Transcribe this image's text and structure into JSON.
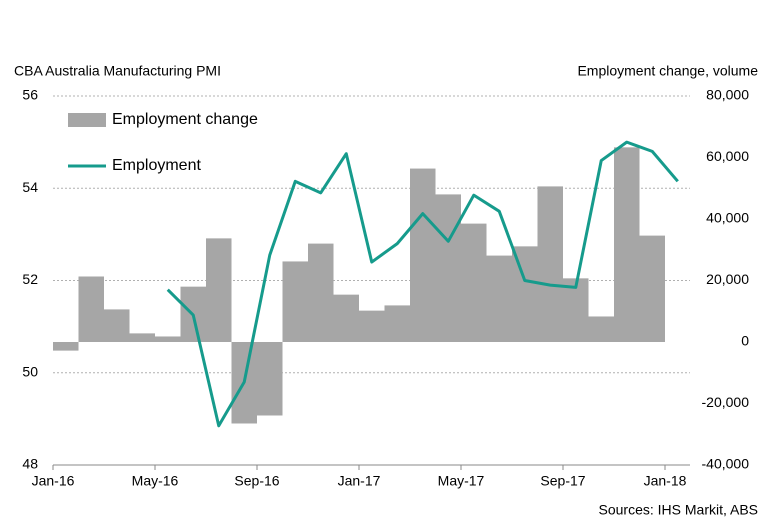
{
  "chart_data": {
    "type": "bar_line",
    "title": "CBA Australia Manufacturing  PMI",
    "y2_title": "Employment change, volume",
    "source": "Sources: IHS Markit, ABS",
    "categories": [
      "Jan-16",
      null,
      null,
      null,
      "May-16",
      null,
      null,
      null,
      "Sep-16",
      null,
      null,
      null,
      "Jan-17",
      null,
      null,
      null,
      "May-17",
      null,
      null,
      null,
      "Sep-17",
      null,
      null,
      null,
      "Jan-18"
    ],
    "series": [
      {
        "name": "Employment change",
        "type": "bar",
        "axis": "y2",
        "color": "#a6a6a6",
        "values": [
          -2800,
          21300,
          10600,
          2800,
          1800,
          18000,
          33700,
          -26500,
          -23900,
          26200,
          32000,
          15400,
          10200,
          11900,
          56400,
          48000,
          38500,
          28100,
          31100,
          50600,
          20700,
          8300,
          63300,
          34600,
          null
        ]
      },
      {
        "name": "Employment",
        "type": "line",
        "axis": "y",
        "color": "#169b8c",
        "values": [
          null,
          null,
          null,
          null,
          51.8,
          51.25,
          48.85,
          49.8,
          52.55,
          54.15,
          53.9,
          54.75,
          52.4,
          52.8,
          53.45,
          52.85,
          53.85,
          53.5,
          52.0,
          51.9,
          51.85,
          54.6,
          55.0,
          54.8,
          54.15
        ]
      }
    ],
    "ylim": [
      48,
      56
    ],
    "yticks": [
      48,
      50,
      52,
      54,
      56
    ],
    "y2lim": [
      -40000,
      80000
    ],
    "y2ticks": [
      {
        "value": -40000,
        "label": "-40,000"
      },
      {
        "value": -20000,
        "label": "-20,000"
      },
      0,
      {
        "value": 20000,
        "label": "20,000"
      },
      {
        "value": 40000,
        "label": "40,000"
      },
      {
        "value": 60000,
        "label": "60,000"
      },
      {
        "value": 80000,
        "label": "80,000"
      }
    ],
    "grid": true
  }
}
